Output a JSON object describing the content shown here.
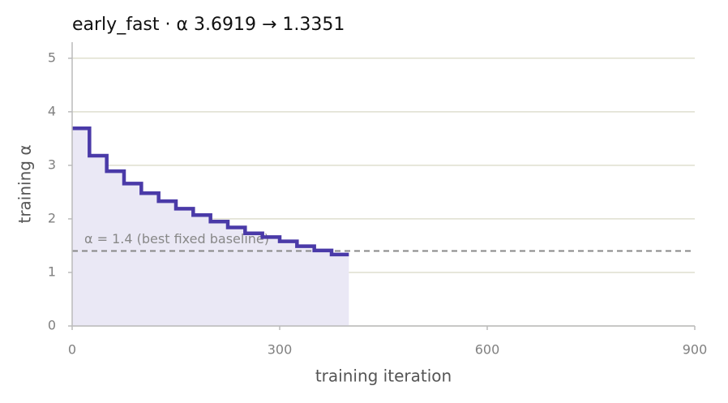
{
  "chart_data": {
    "type": "step",
    "title": "early_fast   ·   α 3.6919 → 1.3351",
    "x_label": "training iteration",
    "y_label": "training α",
    "x": [
      0,
      25,
      50,
      75,
      100,
      125,
      150,
      175,
      200,
      225,
      250,
      275,
      300,
      325,
      350,
      375,
      400
    ],
    "series": [
      {
        "color": "#4a3aa8",
        "fill": "#eae8f5",
        "values": [
          3.6919,
          3.18,
          2.89,
          2.66,
          2.48,
          2.33,
          2.19,
          2.07,
          1.95,
          1.84,
          1.73,
          1.66,
          1.58,
          1.49,
          1.41,
          1.3351,
          1.3351
        ]
      }
    ],
    "baseline": {
      "value": 1.4,
      "label": "α = 1.4 (best fixed baseline)",
      "color": "#888888"
    },
    "xlim": [
      0,
      900
    ],
    "xticks": [
      0,
      300,
      600,
      900
    ],
    "ylim": [
      0,
      5.3
    ],
    "yticks": [
      0,
      1,
      2,
      3,
      4,
      5
    ],
    "grid": true
  }
}
